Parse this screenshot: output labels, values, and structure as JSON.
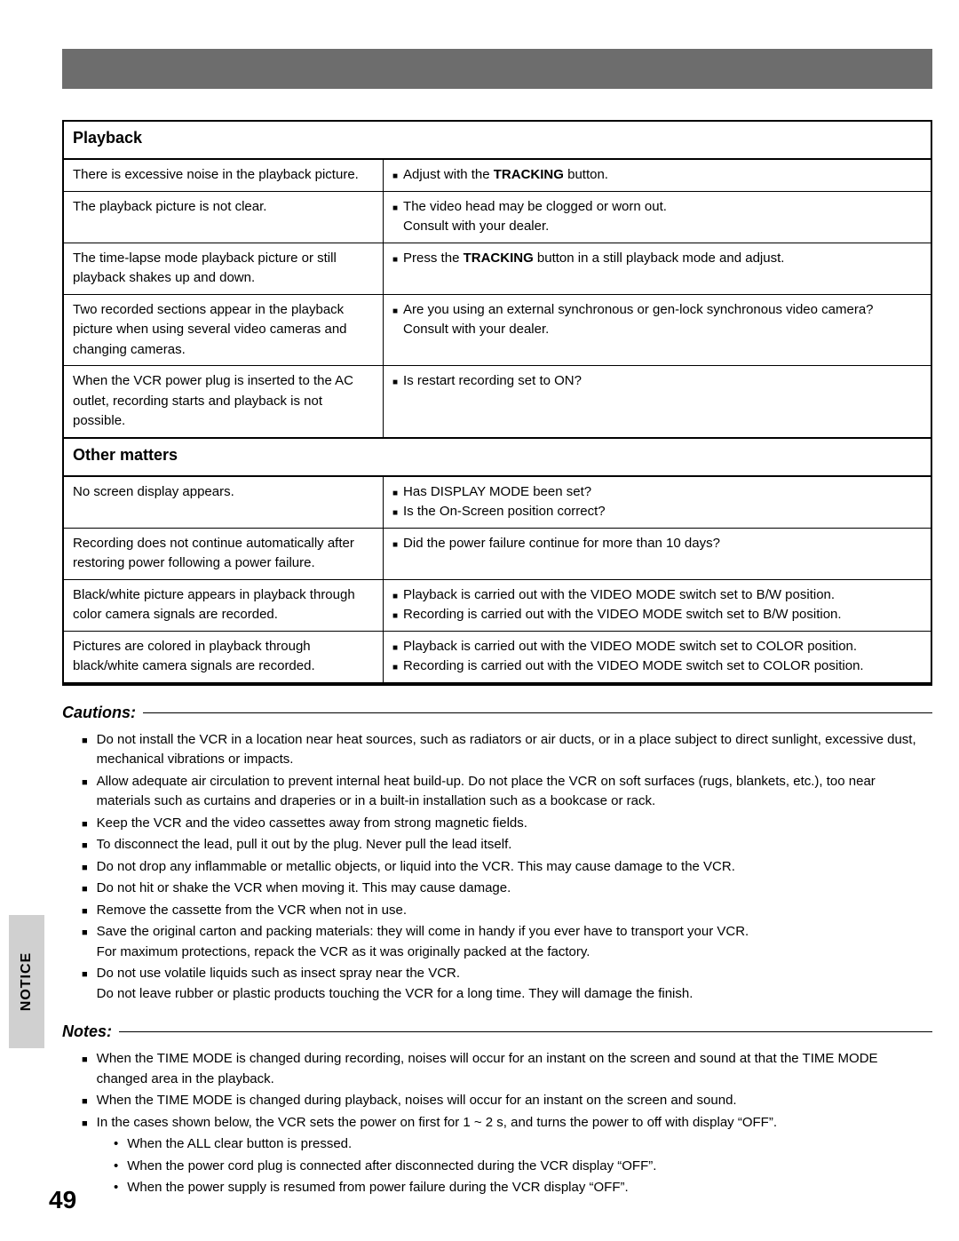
{
  "colors": {
    "topbar": "#6d6d6d",
    "sidetab": "#d0d0d0",
    "text": "#000000",
    "bg": "#ffffff",
    "border": "#000000"
  },
  "sections": {
    "playback": {
      "title": "Playback",
      "rows": [
        {
          "symptom": "There is excessive noise in the playback picture.",
          "remedies": [
            {
              "pre": "Adjust with the ",
              "bold": "TRACKING",
              "post": " button."
            }
          ]
        },
        {
          "symptom": "The playback picture is not clear.",
          "remedies": [
            {
              "text": "The video head may be clogged or worn out.\nConsult with your dealer."
            }
          ]
        },
        {
          "symptom": "The time-lapse mode playback picture or still playback shakes up and down.",
          "remedies": [
            {
              "pre": "Press the ",
              "bold": "TRACKING",
              "post": " button in a still playback mode and adjust."
            }
          ]
        },
        {
          "symptom": "Two recorded sections appear in the playback picture when using several video cameras and changing cameras.",
          "remedies": [
            {
              "text": "Are you using an external synchronous or gen-lock synchronous video camera?\nConsult with your dealer."
            }
          ]
        },
        {
          "symptom": "When the VCR power plug is inserted to the AC outlet, recording starts and playback is not possible.",
          "remedies": [
            {
              "text": "Is restart recording set to ON?"
            }
          ]
        }
      ]
    },
    "other": {
      "title": "Other matters",
      "rows": [
        {
          "symptom": "No screen display appears.",
          "remedies": [
            {
              "text": "Has DISPLAY MODE been set?"
            },
            {
              "text": "Is the On-Screen position correct?"
            }
          ]
        },
        {
          "symptom": "Recording does not continue automatically after restoring power following a power failure.",
          "remedies": [
            {
              "text": "Did the power failure continue for more than 10 days?"
            }
          ]
        },
        {
          "symptom": "Black/white picture appears in playback through color camera signals are recorded.",
          "remedies": [
            {
              "text": "Playback is carried out with the VIDEO MODE switch set to B/W position."
            },
            {
              "text": "Recording is carried out with the VIDEO MODE switch set to B/W position."
            }
          ]
        },
        {
          "symptom": "Pictures are colored in playback through black/white camera signals are recorded.",
          "remedies": [
            {
              "text": "Playback is carried out with the VIDEO MODE switch set to COLOR position."
            },
            {
              "text": "Recording is carried out with the VIDEO MODE switch set to COLOR position."
            }
          ]
        }
      ]
    }
  },
  "cautions": {
    "title": "Cautions:",
    "items": [
      "Do not install the VCR in a location near heat sources, such as radiators or air ducts, or in a place subject to direct sunlight, excessive dust, mechanical vibrations or impacts.",
      "Allow adequate air circulation to prevent internal heat build-up. Do not place the VCR on soft surfaces (rugs, blankets, etc.), too near materials such as curtains and draperies or in a built-in installation such as a bookcase or rack.",
      "Keep the VCR and the video cassettes away from strong magnetic fields.",
      "To disconnect the lead, pull it out by the plug. Never pull the lead itself.",
      "Do not drop any inflammable or metallic objects, or liquid into the VCR. This may cause damage to the VCR.",
      "Do not hit or shake the VCR when moving it. This may cause damage.",
      "Remove the cassette from the VCR when not in use.",
      "Save the original carton and packing materials: they will come in handy if you ever have to transport your VCR.\nFor maximum protections, repack the VCR as it was originally packed at the factory.",
      "Do not use volatile liquids such as insect spray near the VCR.\nDo not leave rubber or plastic products touching the VCR for a long time. They will damage the finish."
    ]
  },
  "notes": {
    "title": "Notes:",
    "items": [
      {
        "text": "When the TIME MODE is changed during recording, noises will occur for an instant on the screen and sound at that the TIME MODE changed area in the playback."
      },
      {
        "text": "When the TIME MODE is changed during playback, noises will occur for an instant on the screen and sound."
      },
      {
        "text": "In the cases shown below, the VCR sets the power on first for 1 ~ 2 s, and turns the power to off with display “OFF”.",
        "subs": [
          "When the ALL clear button is pressed.",
          "When the power cord plug is connected after disconnected during the VCR display “OFF”.",
          "When the power supply is resumed from power failure during the VCR display “OFF”."
        ]
      }
    ]
  },
  "sideTab": "NOTICE",
  "pageNumber": "49"
}
